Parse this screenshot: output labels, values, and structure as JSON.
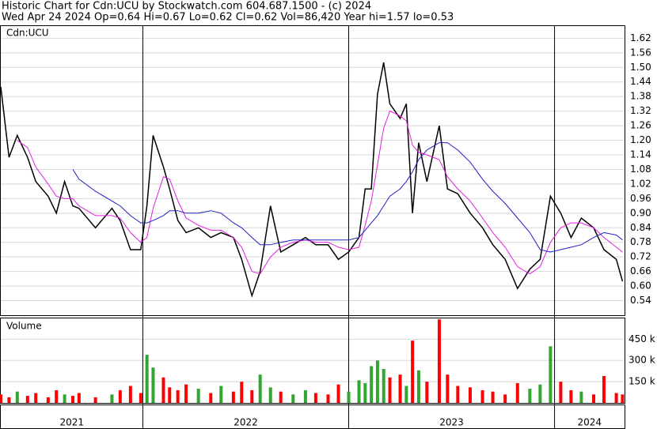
{
  "chart_data": {
    "type": "stock",
    "title": "Historic Chart for Cdn:UCU by Stockwatch.com 604.687.1500 - (c) 2024",
    "subtitle": "Wed Apr 24 2024  Op=0.64  Hi=0.67  Lo=0.62  Cl=0.62  Vol=86,420  Year hi=1.57  lo=0.53",
    "annotations": [
      "Cdn:UCU",
      "Volume"
    ],
    "x": [
      2021.31,
      2021.35,
      2021.39,
      2021.44,
      2021.48,
      2021.54,
      2021.58,
      2021.62,
      2021.66,
      2021.69,
      2021.77,
      2021.85,
      2021.89,
      2021.94,
      2021.99,
      2022.02,
      2022.05,
      2022.1,
      2022.13,
      2022.17,
      2022.21,
      2022.27,
      2022.33,
      2022.38,
      2022.44,
      2022.48,
      2022.53,
      2022.57,
      2022.62,
      2022.67,
      2022.73,
      2022.79,
      2022.84,
      2022.9,
      2022.95,
      2023.0,
      2023.05,
      2023.08,
      2023.11,
      2023.14,
      2023.17,
      2023.2,
      2023.25,
      2023.28,
      2023.31,
      2023.34,
      2023.38,
      2023.44,
      2023.48,
      2023.53,
      2023.59,
      2023.65,
      2023.7,
      2023.76,
      2023.82,
      2023.88,
      2023.93,
      2023.98,
      2024.03,
      2024.08,
      2024.13,
      2024.19,
      2024.24,
      2024.3,
      2024.33
    ],
    "xlim": [
      2021.31,
      2024.34
    ],
    "xticks": [
      2022,
      2023,
      2024
    ],
    "x_labels": [
      "2021",
      "2022",
      "2023",
      "2024"
    ],
    "ylim": [
      0.48,
      1.67
    ],
    "yticks": [
      0.54,
      {
        "value": 0.6,
        "label": "0.60"
      },
      0.66,
      {
        "value": 0.72,
        "label": "0.72"
      },
      0.78,
      0.84,
      {
        "value": 0.9,
        "label": "0.90"
      },
      0.96,
      1.02,
      1.08,
      1.14,
      {
        "value": 1.2,
        "label": "1.20"
      },
      1.26,
      1.32,
      1.38,
      1.44,
      {
        "value": 1.5,
        "label": "1.50"
      },
      1.56,
      1.62
    ],
    "y2lim": [
      0,
      597000
    ],
    "y2ticks": [
      {
        "value": 150000,
        "label": "150 k"
      },
      {
        "value": 300000,
        "label": "300 k"
      },
      {
        "value": 450000,
        "label": "450 k"
      }
    ],
    "grid": true,
    "series": [
      {
        "type": "line",
        "color": "#000000",
        "values": [
          1.42,
          1.13,
          1.22,
          1.13,
          1.03,
          0.97,
          0.9,
          1.03,
          0.93,
          0.92,
          0.84,
          0.92,
          0.87,
          0.75,
          0.75,
          0.93,
          1.22,
          1.09,
          1.0,
          0.87,
          0.82,
          0.84,
          0.8,
          0.82,
          0.8,
          0.71,
          0.56,
          0.66,
          0.93,
          0.74,
          0.77,
          0.8,
          0.77,
          0.77,
          0.71,
          0.74,
          0.8,
          1.0,
          1.0,
          1.39,
          1.52,
          1.35,
          1.29,
          1.35,
          0.9,
          1.19,
          1.03,
          1.26,
          1.0,
          0.98,
          0.9,
          0.84,
          0.77,
          0.71,
          0.59,
          0.67,
          0.71,
          0.97,
          0.9,
          0.8,
          0.88,
          0.84,
          0.75,
          0.71,
          0.62
        ]
      },
      {
        "type": "line",
        "color": "#e020e0",
        "values": [
          null,
          null,
          1.2,
          1.17,
          1.09,
          1.02,
          0.97,
          0.96,
          0.96,
          0.93,
          0.89,
          0.89,
          0.88,
          0.82,
          0.78,
          0.8,
          0.92,
          1.05,
          1.04,
          0.95,
          0.88,
          0.85,
          0.83,
          0.83,
          0.8,
          0.76,
          0.66,
          0.65,
          0.72,
          0.76,
          0.78,
          0.79,
          0.78,
          0.78,
          0.76,
          0.75,
          0.76,
          0.85,
          0.95,
          1.1,
          1.25,
          1.32,
          1.3,
          1.28,
          1.18,
          1.15,
          1.14,
          1.12,
          1.05,
          1.0,
          0.95,
          0.88,
          0.82,
          0.76,
          0.68,
          0.65,
          0.68,
          0.78,
          0.84,
          0.86,
          0.86,
          0.84,
          0.8,
          0.76,
          0.74
        ]
      },
      {
        "type": "line",
        "color": "#2020c0",
        "values": [
          null,
          null,
          null,
          null,
          null,
          null,
          null,
          null,
          1.08,
          1.04,
          0.99,
          0.95,
          0.93,
          0.89,
          0.86,
          0.86,
          0.87,
          0.89,
          0.91,
          0.91,
          0.9,
          0.9,
          0.91,
          0.9,
          0.86,
          0.84,
          0.8,
          0.77,
          0.77,
          0.78,
          0.79,
          0.79,
          0.79,
          0.79,
          0.79,
          0.79,
          0.8,
          0.83,
          0.86,
          0.89,
          0.93,
          0.97,
          1.0,
          1.03,
          1.07,
          1.12,
          1.16,
          1.19,
          1.19,
          1.16,
          1.11,
          1.04,
          0.99,
          0.94,
          0.88,
          0.82,
          0.75,
          0.74,
          0.75,
          0.76,
          0.77,
          0.8,
          0.82,
          0.81,
          0.79
        ]
      },
      {
        "type": "bar",
        "axis": "y2",
        "values": [
          60000,
          40000,
          80000,
          50000,
          70000,
          40000,
          90000,
          60000,
          50000,
          70000,
          40000,
          60000,
          90000,
          120000,
          70000,
          340000,
          250000,
          180000,
          110000,
          90000,
          130000,
          100000,
          70000,
          120000,
          80000,
          150000,
          90000,
          200000,
          110000,
          80000,
          60000,
          90000,
          70000,
          60000,
          130000,
          80000,
          160000,
          140000,
          260000,
          300000,
          240000,
          180000,
          200000,
          120000,
          440000,
          230000,
          150000,
          590000,
          200000,
          120000,
          110000,
          90000,
          80000,
          60000,
          140000,
          100000,
          130000,
          400000,
          150000,
          90000,
          80000,
          60000,
          190000,
          70000,
          60000
        ],
        "colors": [
          "#ff0000",
          "#ff0000",
          "#33a532",
          "#ff0000",
          "#ff0000",
          "#ff0000",
          "#ff0000",
          "#33a532",
          "#ff0000",
          "#ff0000",
          "#ff0000",
          "#33a532",
          "#ff0000",
          "#ff0000",
          "#ff0000",
          "#33a532",
          "#33a532",
          "#ff0000",
          "#ff0000",
          "#ff0000",
          "#ff0000",
          "#33a532",
          "#ff0000",
          "#33a532",
          "#ff0000",
          "#ff0000",
          "#ff0000",
          "#33a532",
          "#33a532",
          "#ff0000",
          "#33a532",
          "#33a532",
          "#ff0000",
          "#ff0000",
          "#ff0000",
          "#33a532",
          "#33a532",
          "#33a532",
          "#33a532",
          "#33a532",
          "#33a532",
          "#ff0000",
          "#ff0000",
          "#33a532",
          "#ff0000",
          "#33a532",
          "#ff0000",
          "#ff0000",
          "#ff0000",
          "#ff0000",
          "#ff0000",
          "#ff0000",
          "#ff0000",
          "#ff0000",
          "#ff0000",
          "#33a532",
          "#33a532",
          "#33a532",
          "#ff0000",
          "#ff0000",
          "#33a532",
          "#ff0000",
          "#ff0000",
          "#ff0000",
          "#ff0000"
        ]
      }
    ]
  }
}
